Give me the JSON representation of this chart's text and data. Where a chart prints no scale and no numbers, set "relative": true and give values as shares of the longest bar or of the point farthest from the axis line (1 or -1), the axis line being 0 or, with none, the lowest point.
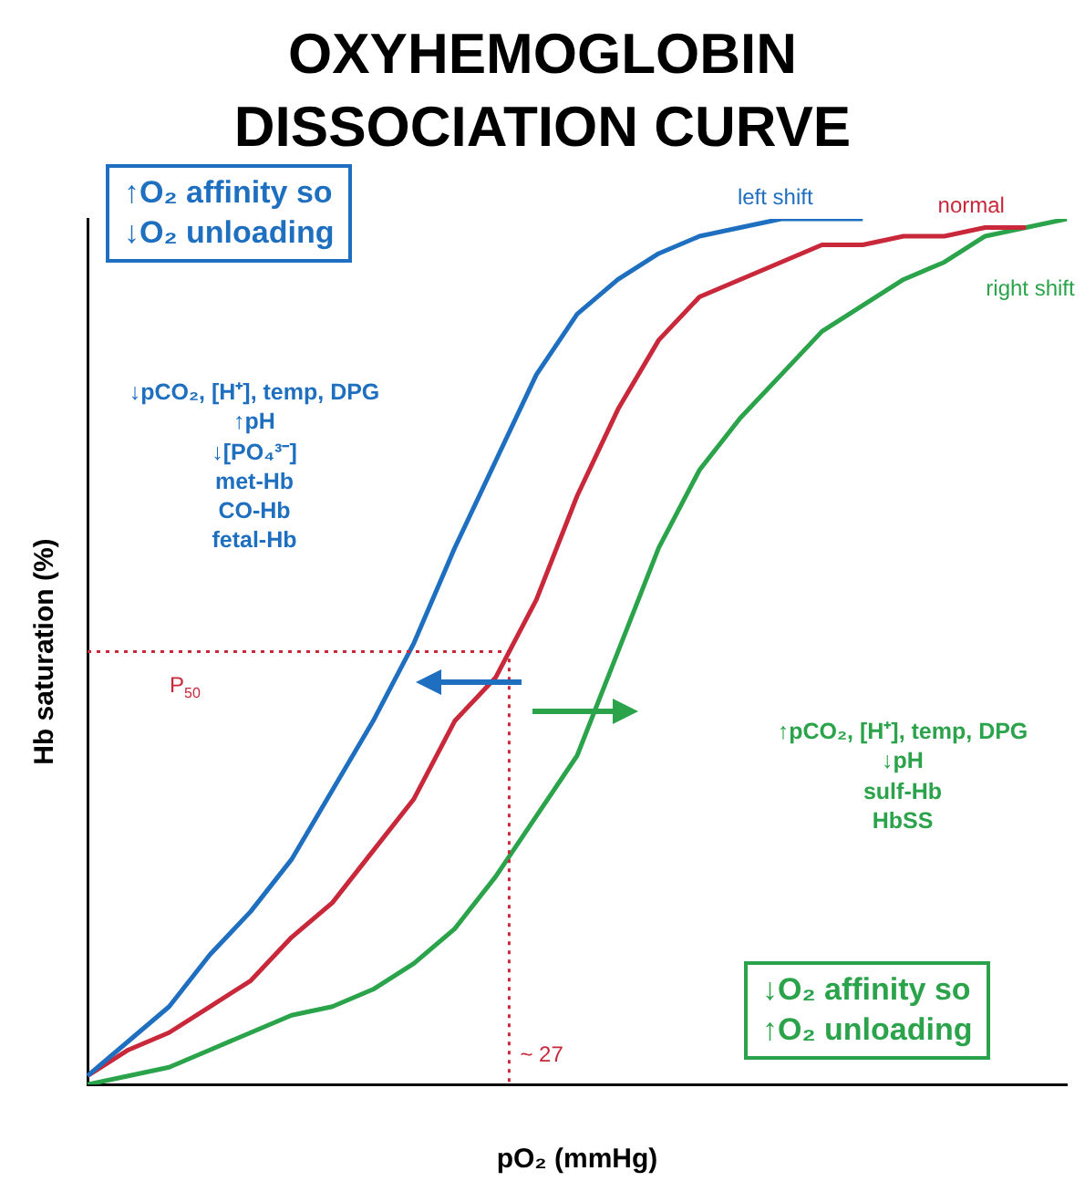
{
  "chart_data": {
    "type": "line",
    "title": "OXYHEMOGLOBIN\nDISSOCIATION CURVE",
    "xlabel": "pO₂ (mmHg)",
    "ylabel": "Hb saturation (%)",
    "relative": true,
    "marker": "none",
    "line_style": "solid",
    "categories": [
      null,
      null,
      null,
      null,
      null,
      null,
      null,
      null,
      null,
      null,
      null,
      null,
      null,
      null,
      null,
      null,
      null,
      null,
      null,
      null,
      null,
      null,
      null,
      null,
      null
    ],
    "series": [
      {
        "name": "left shift",
        "color": "#1f6fc0",
        "values": [
          0.01,
          0.05,
          0.09,
          0.15,
          0.2,
          0.26,
          0.34,
          0.42,
          0.51,
          0.62,
          0.72,
          0.82,
          0.89,
          0.93,
          0.96,
          0.98,
          0.99,
          1.0,
          1.0,
          1.0,
          null,
          null,
          null,
          null,
          null
        ]
      },
      {
        "name": "normal",
        "color": "#c8283a",
        "values": [
          0.01,
          0.04,
          0.06,
          0.09,
          0.12,
          0.17,
          0.21,
          0.27,
          0.33,
          0.42,
          0.47,
          0.56,
          0.68,
          0.78,
          0.86,
          0.91,
          0.93,
          0.95,
          0.97,
          0.97,
          0.98,
          0.98,
          0.99,
          0.99,
          null
        ]
      },
      {
        "name": "right shift",
        "color": "#2aa34a",
        "values": [
          0.0,
          0.01,
          0.02,
          0.04,
          0.06,
          0.08,
          0.09,
          0.11,
          0.14,
          0.18,
          0.24,
          0.31,
          0.38,
          0.5,
          0.62,
          0.71,
          0.77,
          0.82,
          0.87,
          0.9,
          0.93,
          0.95,
          0.98,
          0.99,
          1.0
        ]
      }
    ],
    "ref_lines": [
      {
        "axis": "y",
        "value": 0.5,
        "label": "P$_{50}$",
        "color": "#c8283a",
        "line_style": "dotted"
      }
    ],
    "annotations": [
      "↑O₂ affinity so\n↓O₂ unloading",
      "↓pCO₂, [H⁺], temp, DPG\n↑pH\n↓[PO₄³⁻]\nmet-Hb\nCO-Hb\nfetal-Hb",
      "↑pCO₂, [H⁺], temp, DPG\n↓pH\nsulf-Hb\nHbSS",
      "↓O₂ affinity so\n↑O₂ unloading",
      "~ 27"
    ]
  }
}
